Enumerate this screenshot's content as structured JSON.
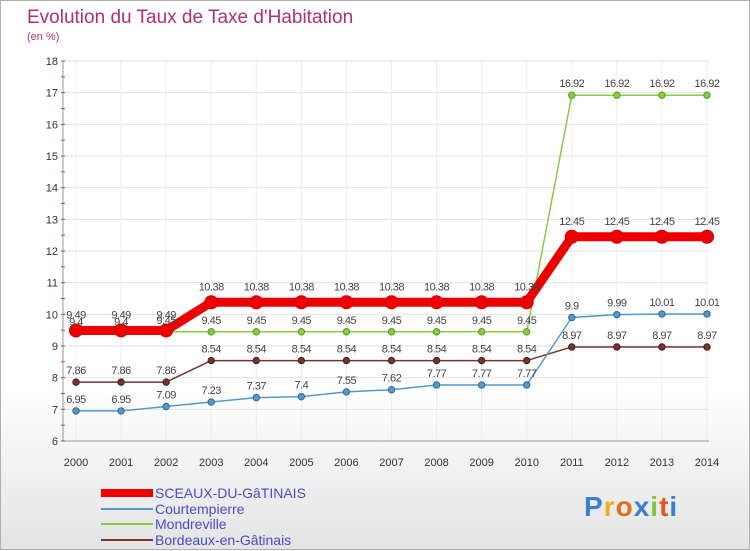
{
  "title": "Evolution du Taux de Taxe d'Habitation",
  "subtitle": "(en %)",
  "logo": "Proxiti",
  "chart_data": {
    "type": "line",
    "title": "Evolution du Taux de Taxe d'Habitation",
    "ylabel": "(en %)",
    "ylim": [
      6,
      18
    ],
    "yticks": [
      6,
      7,
      8,
      9,
      10,
      11,
      12,
      13,
      14,
      15,
      16,
      17,
      18
    ],
    "x": [
      "2000",
      "2001",
      "2002",
      "2003",
      "2004",
      "2005",
      "2006",
      "2007",
      "2008",
      "2009",
      "2010",
      "2011",
      "2012",
      "2013",
      "2014"
    ],
    "legend_position": "bottom-left",
    "series": [
      {
        "name": "SCEAUX-DU-GâTINAIS",
        "color": "#ee0000",
        "values": [
          9.49,
          9.49,
          9.49,
          10.38,
          10.38,
          10.38,
          10.38,
          10.38,
          10.38,
          10.38,
          10.38,
          12.45,
          12.45,
          12.45,
          12.45
        ],
        "labels": [
          "9.49",
          "9.49",
          "9.49",
          "10.38",
          "10.38",
          "10.38",
          "10.38",
          "10.38",
          "10.38",
          "10.38",
          "10.38",
          "12.45",
          "12.45",
          "12.45",
          "12.45"
        ]
      },
      {
        "name": "Courtempierre",
        "color": "#5599cc",
        "values": [
          6.95,
          6.95,
          7.09,
          7.23,
          7.37,
          7.4,
          7.55,
          7.62,
          7.77,
          7.77,
          7.77,
          9.9,
          9.99,
          10.01,
          10.01
        ],
        "labels": [
          "6.95",
          "6.95",
          "7.09",
          "7.23",
          "7.37",
          "7.4",
          "7.55",
          "7.62",
          "7.77",
          "7.77",
          "7.77",
          "9.9",
          "9.99",
          "10.01",
          "10.01"
        ]
      },
      {
        "name": "Mondreville",
        "color": "#88cc44",
        "values": [
          9.4,
          9.4,
          9.45,
          9.45,
          9.45,
          9.45,
          9.45,
          9.45,
          9.45,
          9.45,
          9.45,
          16.92,
          16.92,
          16.92,
          16.92
        ],
        "labels": [
          "9.4",
          "9.4",
          "9.45",
          "9.45",
          "9.45",
          "9.45",
          "9.45",
          "9.45",
          "9.45",
          "9.45",
          "9.45",
          "16.92",
          "16.92",
          "16.92",
          "16.92"
        ]
      },
      {
        "name": "Bordeaux-en-Gâtinais",
        "color": "#773333",
        "values": [
          7.86,
          7.86,
          7.86,
          8.54,
          8.54,
          8.54,
          8.54,
          8.54,
          8.54,
          8.54,
          8.54,
          8.97,
          8.97,
          8.97,
          8.97
        ],
        "labels": [
          "7.86",
          "7.86",
          "7.86",
          "8.54",
          "8.54",
          "8.54",
          "8.54",
          "8.54",
          "8.54",
          "8.54",
          "8.54",
          "8.97",
          "8.97",
          "8.97",
          "8.97"
        ]
      }
    ]
  }
}
